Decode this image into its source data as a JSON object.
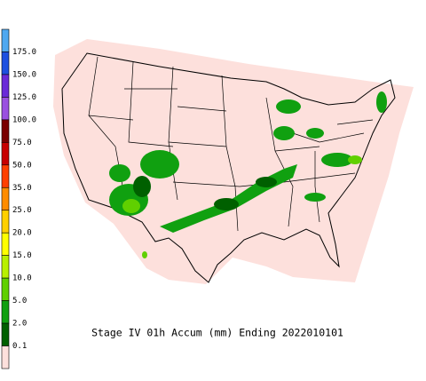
{
  "legend": {
    "labels": [
      "175.0",
      "150.0",
      "125.0",
      "100.0",
      "75.0",
      "50.0",
      "35.0",
      "25.0",
      "20.0",
      "15.0",
      "10.0",
      "5.0",
      "2.0",
      "0.1"
    ],
    "colors": [
      "#4fa8f0",
      "#1e50e0",
      "#6a2ad8",
      "#9a50e0",
      "#7a0000",
      "#c80000",
      "#ff4000",
      "#ff8c00",
      "#ffd000",
      "#ffff00",
      "#b8f000",
      "#60d000",
      "#10a010",
      "#006000",
      "#fde0dc"
    ]
  },
  "map": {
    "title": "Stage IV 01h Accum (mm) Ending 2022010101"
  }
}
